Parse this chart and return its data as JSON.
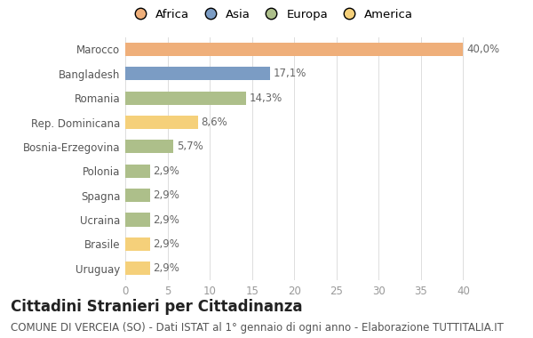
{
  "categories": [
    "Uruguay",
    "Brasile",
    "Ucraina",
    "Spagna",
    "Polonia",
    "Bosnia-Erzegovina",
    "Rep. Dominicana",
    "Romania",
    "Bangladesh",
    "Marocco"
  ],
  "values": [
    2.9,
    2.9,
    2.9,
    2.9,
    2.9,
    5.7,
    8.6,
    14.3,
    17.1,
    40.0
  ],
  "labels": [
    "2,9%",
    "2,9%",
    "2,9%",
    "2,9%",
    "2,9%",
    "5,7%",
    "8,6%",
    "14,3%",
    "17,1%",
    "40,0%"
  ],
  "colors": [
    "#F5D07A",
    "#F5D07A",
    "#ADBF8A",
    "#ADBF8A",
    "#ADBF8A",
    "#ADBF8A",
    "#F5D07A",
    "#ADBF8A",
    "#7B9CC4",
    "#EFAF7A"
  ],
  "legend_labels": [
    "Africa",
    "Asia",
    "Europa",
    "America"
  ],
  "legend_colors": [
    "#EFAF7A",
    "#7B9CC4",
    "#ADBF8A",
    "#F5D07A"
  ],
  "title": "Cittadini Stranieri per Cittadinanza",
  "subtitle": "COMUNE DI VERCEIA (SO) - Dati ISTAT al 1° gennaio di ogni anno - Elaborazione TUTTITALIA.IT",
  "xlim": [
    0,
    41
  ],
  "xticks": [
    0,
    5,
    10,
    15,
    20,
    25,
    30,
    35,
    40
  ],
  "bg_color": "#FFFFFF",
  "bar_height": 0.55,
  "title_fontsize": 12,
  "subtitle_fontsize": 8.5,
  "label_fontsize": 8.5,
  "tick_fontsize": 8.5,
  "legend_fontsize": 9.5
}
